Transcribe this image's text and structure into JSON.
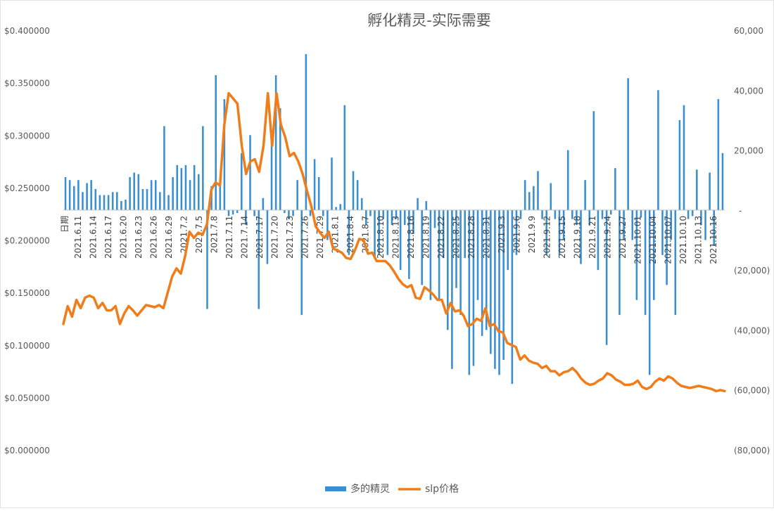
{
  "chart_data": {
    "type": "bar+line",
    "title": "孵化精灵-实际需要",
    "left_axis": {
      "min": 0,
      "max": 0.4,
      "ticks": [
        "$0.000000",
        "$0.050000",
        "$0.100000",
        "$0.150000",
        "$0.200000",
        "$0.250000",
        "$0.300000",
        "$0.350000",
        "$0.400000"
      ]
    },
    "right_axis": {
      "min": -80000,
      "max": 60000,
      "ticks": [
        "(80,000)",
        "(60,000)",
        "(40,000)",
        "(20,000)",
        "-",
        "20,000",
        "40,000",
        "60,000"
      ]
    },
    "category_axis_header": "日期",
    "x_tick_labels": [
      "2021.6.11",
      "2021.6.14",
      "2021.6.17",
      "2021.6.20",
      "2021.6.23",
      "2021.6.26",
      "2021.6.29",
      "2021.7.2",
      "2021.7.5",
      "2021.7.8",
      "2021.7.11",
      "2021.7.14",
      "2021.7.17",
      "2021.7.20",
      "2021.7.23",
      "2021.7.26",
      "2021.7.29",
      "2021.8.1",
      "2021.8.4",
      "2021.8.7",
      "2021.8.10",
      "2021.8.13",
      "2021.8.16",
      "2021.8.19",
      "2021.8.22",
      "2021.8.25",
      "2021.8.28",
      "2021.8.31",
      "2021.9.3",
      "2021.9.6",
      "2021.9.9",
      "2021.9.12",
      "2021.9.15",
      "2021.9.18",
      "2021.9.21",
      "2021.9.24",
      "2021.9.27",
      "2021.10.01",
      "2021.10.04",
      "2021.10.07",
      "2021.10.10",
      "2021.10.13",
      "2021.10.16"
    ],
    "series": [
      {
        "name": "多的精灵",
        "type": "bar",
        "axis": "right",
        "color": "#3a8fd0",
        "values": [
          11000,
          10000,
          8000,
          10000,
          6000,
          9000,
          10000,
          7000,
          5000,
          5000,
          5000,
          6000,
          6000,
          3000,
          3500,
          11000,
          12500,
          12000,
          7000,
          7000,
          10000,
          10000,
          6000,
          28000,
          5000,
          11000,
          15000,
          14000,
          15000,
          10000,
          15000,
          12000,
          28000,
          -33000,
          8000,
          45000,
          9000,
          37000,
          -2000,
          -1500,
          -1000,
          19000,
          -5000,
          25000,
          -2000,
          -33000,
          4000,
          -18000,
          26000,
          45000,
          34000,
          -1000,
          -3000,
          -2000,
          10000,
          -35000,
          52000,
          -2000,
          17000,
          11000,
          -2000,
          -10000,
          17500,
          1000,
          2000,
          35000,
          -15000,
          13000,
          10000,
          4000,
          -5000,
          -2000,
          -16000,
          -15000,
          -3000,
          -15000,
          -5000,
          -3000,
          -20000,
          -5000,
          -23000,
          -8000,
          4000,
          -25000,
          3000,
          -30000,
          -6000,
          -30000,
          -16000,
          -40000,
          -53000,
          -26000,
          -35000,
          -16000,
          -55000,
          -52000,
          -30000,
          -42000,
          -40000,
          -48000,
          -53000,
          -55000,
          -50000,
          -20000,
          -58000,
          -15000,
          -3000,
          10000,
          6000,
          8000,
          13000,
          -3000,
          -15000,
          9000,
          -3000,
          -15000,
          -10000,
          20000,
          -3000,
          -5000,
          -18000,
          10000,
          -5000,
          33000,
          -20000,
          -3000,
          -45000,
          -1500,
          14000,
          -35000,
          -10000,
          44000,
          -10000,
          -30000,
          -2500,
          -35000,
          -55000,
          -30000,
          40000,
          -15000,
          -25000,
          -10000,
          -35000,
          30000,
          35000,
          -3000,
          -2000,
          13500,
          -5000,
          -10000,
          12500,
          -12000,
          37000,
          19000
        ]
      },
      {
        "name": "slp价格",
        "type": "line",
        "axis": "left",
        "color": "#f07d1a",
        "values": [
          0.12,
          0.137,
          0.127,
          0.143,
          0.135,
          0.145,
          0.147,
          0.145,
          0.135,
          0.14,
          0.133,
          0.133,
          0.137,
          0.12,
          0.13,
          0.137,
          0.133,
          0.128,
          0.133,
          0.138,
          0.137,
          0.136,
          0.138,
          0.135,
          0.15,
          0.165,
          0.173,
          0.168,
          0.185,
          0.208,
          0.202,
          0.207,
          0.205,
          0.215,
          0.248,
          0.255,
          0.252,
          0.31,
          0.34,
          0.335,
          0.33,
          0.29,
          0.263,
          0.275,
          0.277,
          0.265,
          0.29,
          0.34,
          0.29,
          0.34,
          0.31,
          0.298,
          0.28,
          0.283,
          0.275,
          0.263,
          0.247,
          0.232,
          0.213,
          0.207,
          0.202,
          0.208,
          0.192,
          0.19,
          0.188,
          0.183,
          0.182,
          0.19,
          0.201,
          0.2,
          0.187,
          0.188,
          0.18,
          0.18,
          0.18,
          0.176,
          0.17,
          0.163,
          0.158,
          0.155,
          0.157,
          0.145,
          0.144,
          0.155,
          0.152,
          0.148,
          0.143,
          0.143,
          0.13,
          0.14,
          0.132,
          0.133,
          0.128,
          0.118,
          0.12,
          0.125,
          0.123,
          0.135,
          0.118,
          0.12,
          0.113,
          0.112,
          0.102,
          0.1,
          0.098,
          0.086,
          0.09,
          0.085,
          0.083,
          0.082,
          0.078,
          0.08,
          0.075,
          0.075,
          0.071,
          0.074,
          0.075,
          0.078,
          0.074,
          0.068,
          0.064,
          0.062,
          0.063,
          0.066,
          0.068,
          0.073,
          0.071,
          0.067,
          0.065,
          0.062,
          0.062,
          0.063,
          0.066,
          0.06,
          0.058,
          0.06,
          0.065,
          0.068,
          0.066,
          0.07,
          0.068,
          0.064,
          0.061,
          0.06,
          0.059,
          0.06,
          0.061,
          0.06,
          0.059,
          0.058,
          0.056,
          0.057,
          0.056
        ]
      }
    ],
    "legend": {
      "position": "bottom"
    }
  }
}
